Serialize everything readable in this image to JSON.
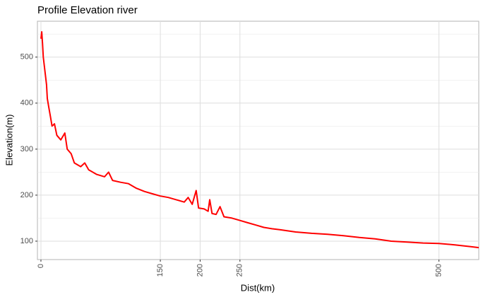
{
  "chart_data": {
    "type": "line",
    "title": "Profile Elevation river",
    "x_label": "Dist(km)",
    "y_label": "Elevation(m)",
    "x": [
      0,
      1,
      2,
      3,
      5,
      7,
      8,
      10,
      12,
      14,
      17,
      20,
      25,
      30,
      33,
      38,
      42,
      50,
      55,
      60,
      70,
      80,
      85,
      90,
      100,
      110,
      120,
      130,
      140,
      150,
      160,
      170,
      180,
      185,
      190,
      195,
      198,
      205,
      210,
      212,
      215,
      220,
      225,
      230,
      240,
      250,
      260,
      270,
      280,
      290,
      300,
      320,
      340,
      360,
      380,
      400,
      420,
      440,
      460,
      480,
      500,
      520,
      540,
      550
    ],
    "values": [
      540,
      555,
      530,
      500,
      470,
      440,
      410,
      390,
      370,
      350,
      355,
      330,
      320,
      335,
      300,
      290,
      270,
      262,
      270,
      255,
      245,
      240,
      250,
      232,
      228,
      225,
      215,
      208,
      203,
      198,
      195,
      190,
      185,
      195,
      180,
      210,
      172,
      170,
      165,
      190,
      160,
      158,
      175,
      153,
      150,
      145,
      140,
      135,
      130,
      127,
      125,
      120,
      117,
      115,
      112,
      108,
      105,
      100,
      98,
      96,
      95,
      92,
      88,
      86
    ],
    "color": "#ff0000",
    "xlim": [
      -4.4,
      550
    ],
    "xticks": [
      0,
      150,
      200,
      250,
      500
    ],
    "ylim": [
      60,
      578
    ],
    "yticks": [
      100,
      200,
      300,
      400,
      500
    ],
    "grid": true
  }
}
